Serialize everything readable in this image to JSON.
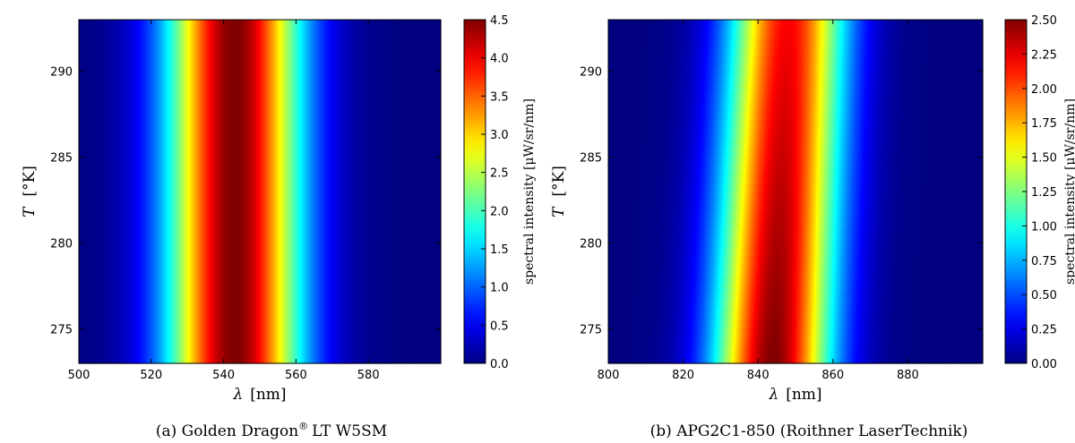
{
  "chart_data": [
    {
      "type": "heatmap",
      "caption_prefix": "(a)",
      "caption_name": "Golden Dragon",
      "caption_mark": "®",
      "caption_suffix": "LT W5SM",
      "xlabel_symbol": "λ",
      "xlabel_unit": "[nm]",
      "ylabel_symbol": "T",
      "ylabel_unit": "[°K]",
      "xlim": [
        500,
        600
      ],
      "ylim": [
        273,
        293
      ],
      "xticks": [
        500,
        520,
        540,
        560,
        580
      ],
      "yticks": [
        275,
        280,
        285,
        290
      ],
      "colorbar_label": "spectral intensity [μW/sr/nm]",
      "colorbar_range": [
        0,
        4.5
      ],
      "colorbar_ticks": [
        "0.0",
        "0.5",
        "1.0",
        "1.5",
        "2.0",
        "2.5",
        "3.0",
        "3.5",
        "4.0",
        "4.5"
      ],
      "peak_wavelength": 543,
      "peak_value": 4.5,
      "spectral_width_sigma": 13
    },
    {
      "type": "heatmap",
      "caption_prefix": "(b)",
      "caption_name": "APG2C1-850 (Roithner LaserTechnik)",
      "caption_mark": "",
      "caption_suffix": "",
      "xlabel_symbol": "λ",
      "xlabel_unit": "[nm]",
      "ylabel_symbol": "T",
      "ylabel_unit": "[°K]",
      "xlim": [
        800,
        900
      ],
      "ylim": [
        273,
        293
      ],
      "xticks": [
        800,
        820,
        840,
        860,
        880
      ],
      "yticks": [
        275,
        280,
        285,
        290
      ],
      "colorbar_label": "spectral intensity [μW/sr/nm]",
      "colorbar_range": [
        0,
        2.5
      ],
      "colorbar_ticks": [
        "0.00",
        "0.25",
        "0.50",
        "0.75",
        "1.00",
        "1.25",
        "1.50",
        "1.75",
        "2.00",
        "2.25",
        "2.50"
      ],
      "peak_wavelength_at_top": 848,
      "peak_wavelength_at_bottom": 844,
      "peak_value_top": 2.2,
      "peak_value_bottom": 2.5,
      "spectral_width_sigma": 11
    }
  ]
}
